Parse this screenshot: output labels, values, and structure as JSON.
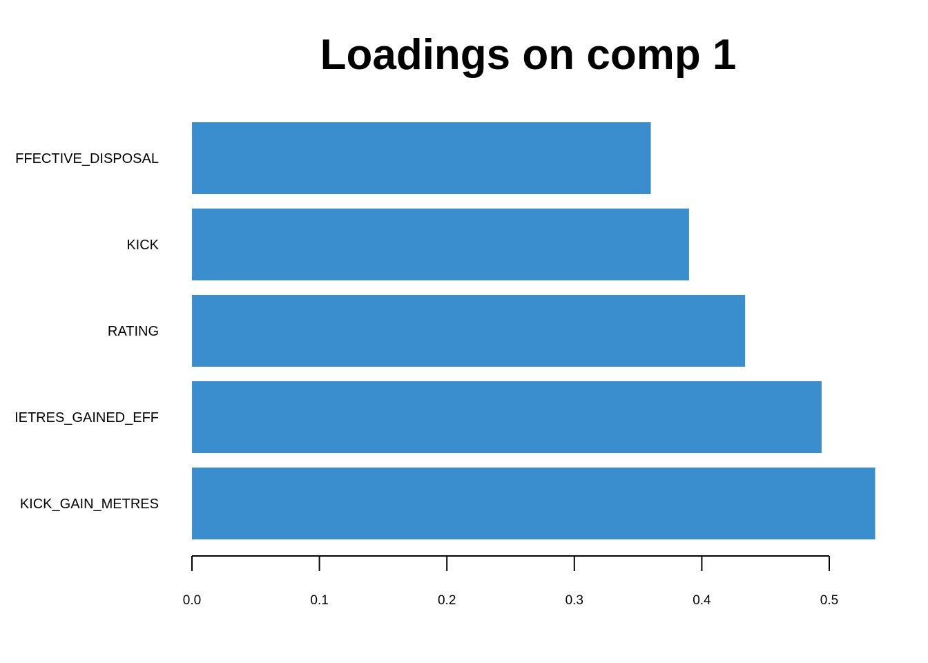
{
  "chart_data": {
    "type": "bar",
    "orientation": "horizontal",
    "title": "Loadings on comp 1",
    "xlabel": "",
    "ylabel": "",
    "categories": [
      "FFECTIVE_DISPOSAL",
      "KICK",
      "RATING",
      "IETRES_GAINED_EFF",
      "KICK_GAIN_METRES"
    ],
    "values": [
      0.36,
      0.39,
      0.434,
      0.494,
      0.536
    ],
    "xlim": [
      0,
      0.536
    ],
    "ticks": [
      0.0,
      0.1,
      0.2,
      0.3,
      0.4,
      0.5
    ],
    "tick_labels": [
      "0.0",
      "0.1",
      "0.2",
      "0.3",
      "0.4",
      "0.5"
    ],
    "bar_color": "#3a8ecd",
    "grid": false,
    "legend": "none"
  }
}
